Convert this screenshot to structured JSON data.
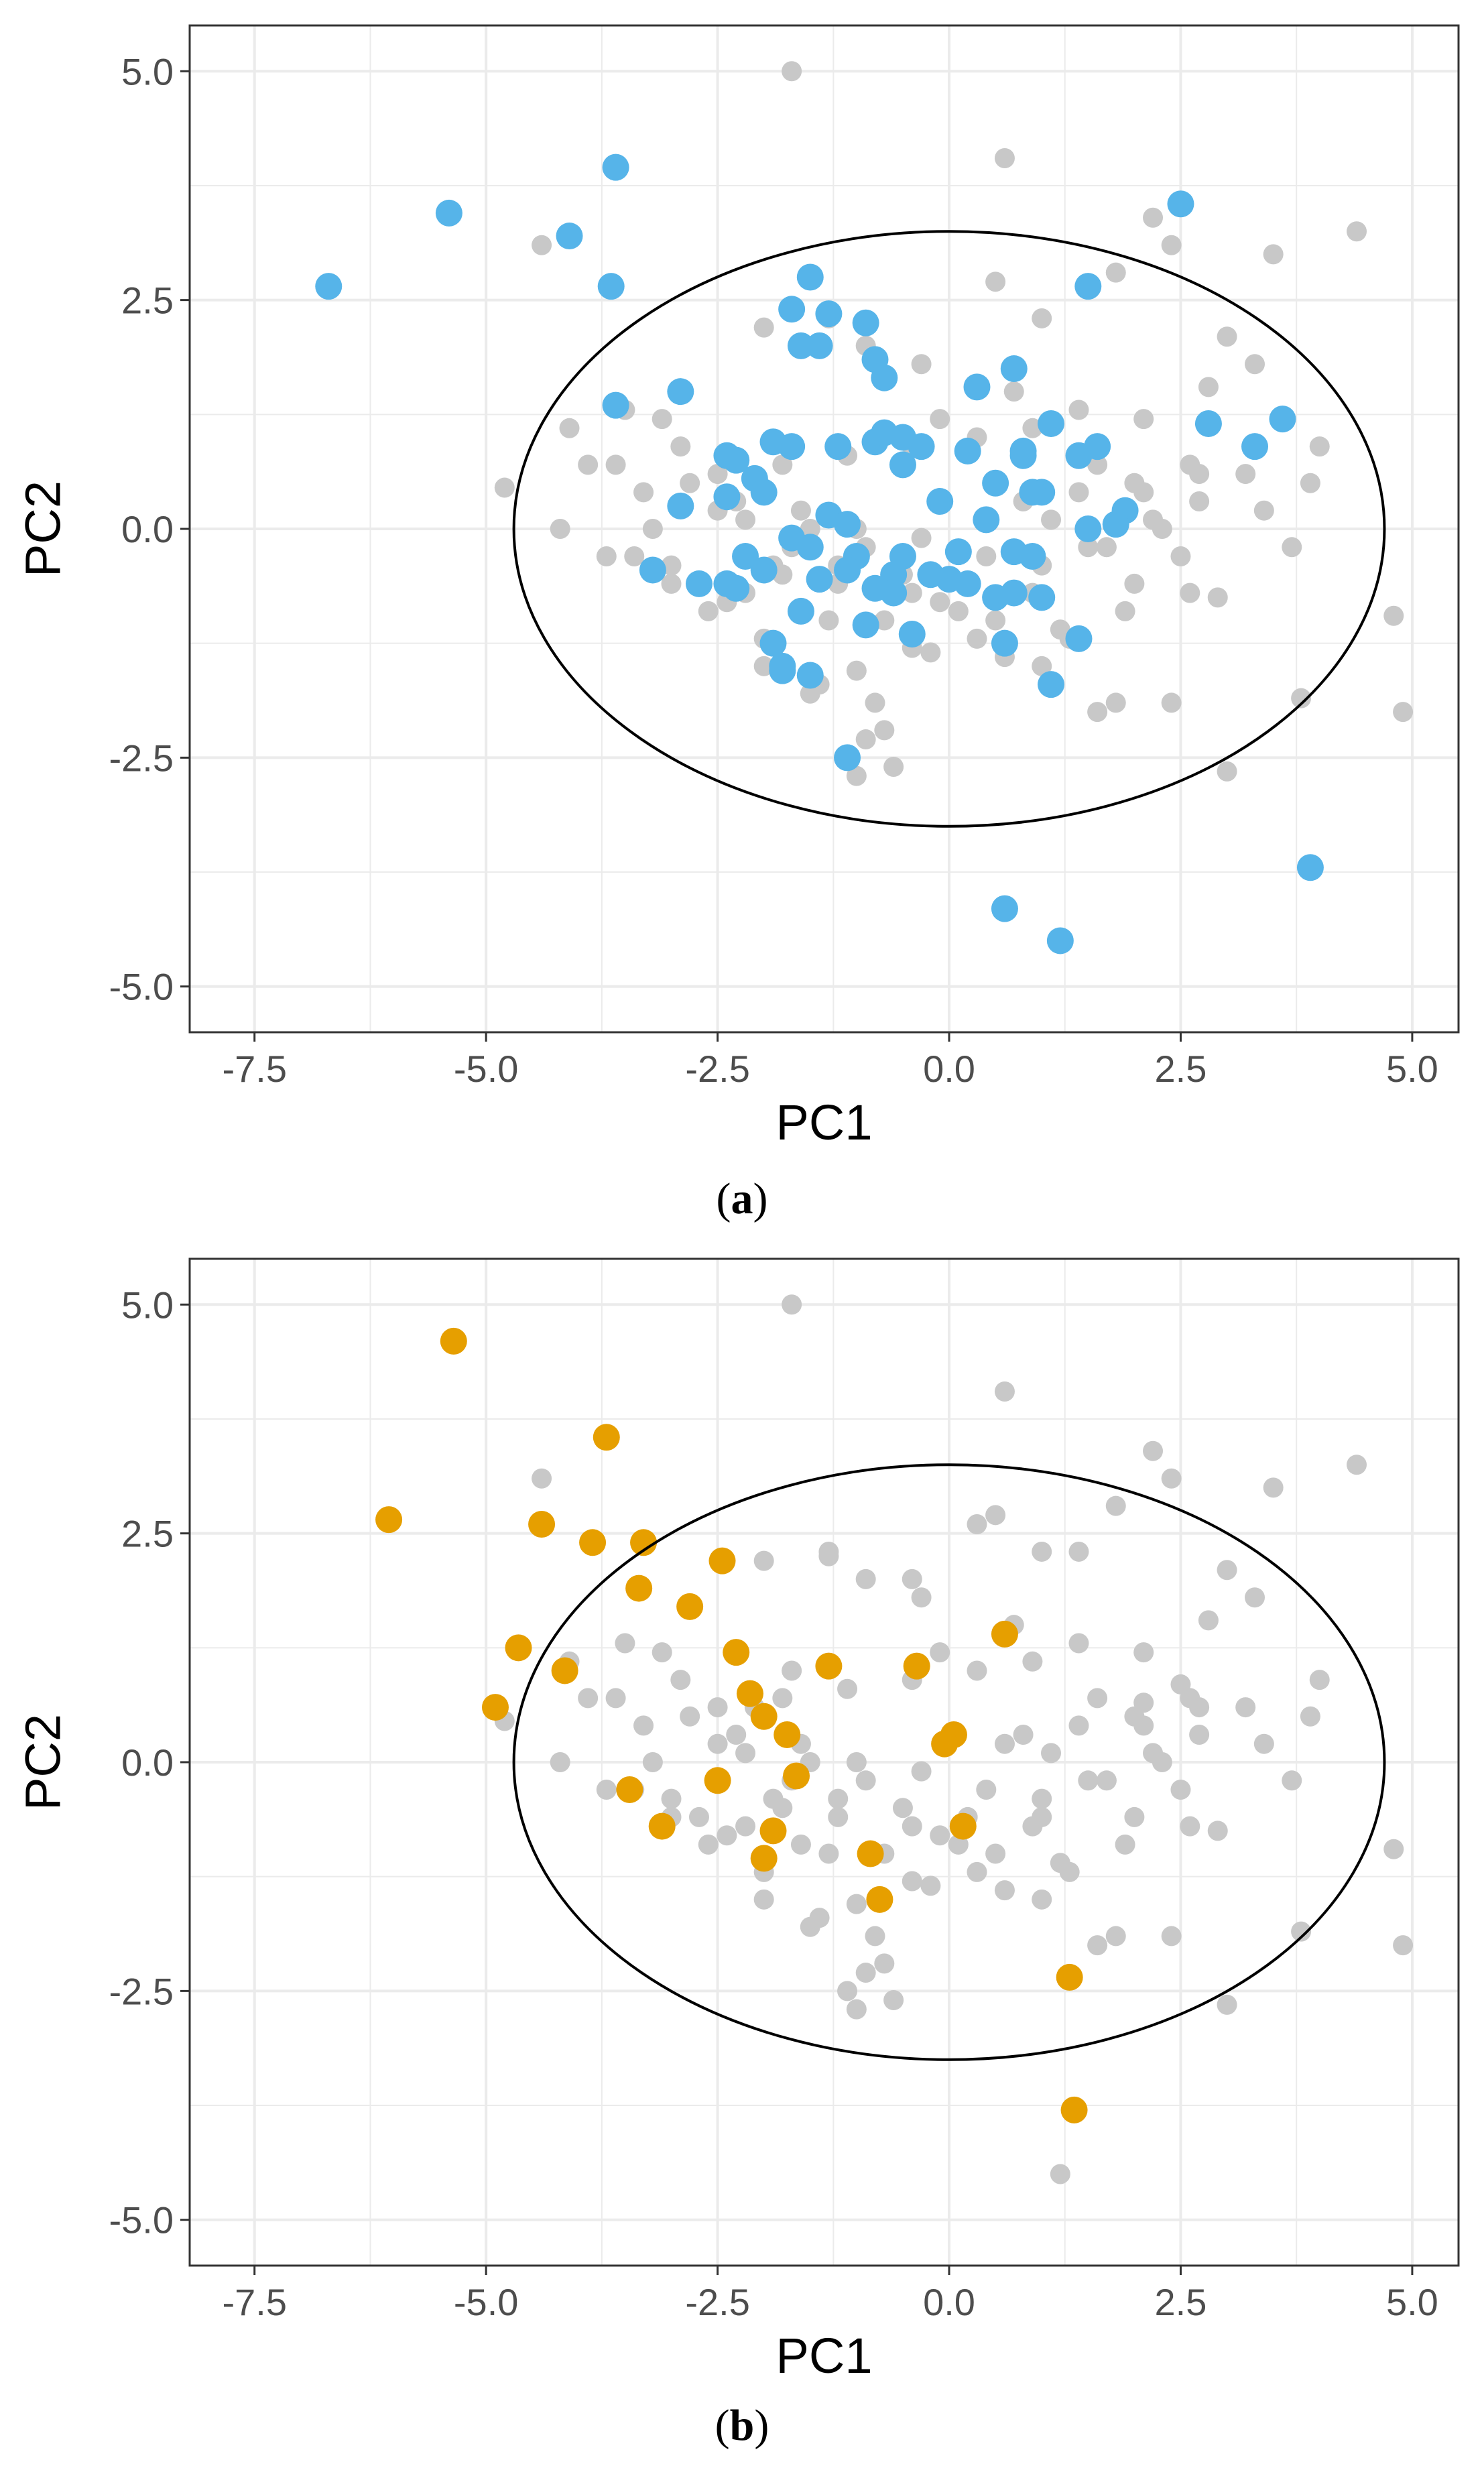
{
  "colors": {
    "background_point": "#c8c8c8",
    "highlight_a": "#56b4e9",
    "highlight_b": "#e69f00",
    "grid": "#ebebeb",
    "panel_border": "#333333",
    "ellipse": "#000000"
  },
  "chart_data": [
    {
      "type": "scatter",
      "caption": {
        "open": "(",
        "label": "a",
        "close": ")"
      },
      "xlabel": "PC1",
      "ylabel": "PC2",
      "xlim": [
        -8.2,
        5.5
      ],
      "ylim": [
        -5.5,
        5.5
      ],
      "x_ticks": [
        -7.5,
        -5.0,
        -2.5,
        0.0,
        2.5,
        5.0
      ],
      "x_tick_labels": [
        "-7.5",
        "-5.0",
        "-2.5",
        "0.0",
        "2.5",
        "5.0"
      ],
      "y_ticks": [
        -5.0,
        -2.5,
        0.0,
        2.5,
        5.0
      ],
      "y_tick_labels": [
        "-5.0",
        "-2.5",
        "0.0",
        "2.5",
        "5.0"
      ],
      "grid": true,
      "legend": "none",
      "ellipse": {
        "cx": 0.0,
        "cy": 0.0,
        "rx": 4.7,
        "ry": 3.25
      },
      "background": {
        "x": [
          -1.7,
          0.6,
          -4.4,
          -4.8,
          -3.1,
          -2.0,
          -1.3,
          -0.9,
          -0.3,
          0.5,
          1.0,
          1.8,
          2.2,
          2.4,
          3.0,
          3.5,
          4.4,
          3.3,
          2.8,
          2.1,
          1.4,
          0.9,
          0.3,
          -0.4,
          -1.1,
          -1.8,
          -2.5,
          -3.3,
          -3.9,
          -4.1,
          -3.5,
          -2.9,
          -2.3,
          -1.6,
          -1.0,
          -0.3,
          0.4,
          1.0,
          1.7,
          2.3,
          2.7,
          3.4,
          3.9,
          4.8,
          4.9,
          3.8,
          3.0,
          2.4,
          1.6,
          1.0,
          0.3,
          -0.4,
          -1.0,
          -1.5,
          -2.0,
          -2.6,
          -3.0,
          -3.7,
          -4.2,
          -3.6,
          -2.8,
          -2.2,
          -1.7,
          -1.2,
          -0.7,
          -0.1,
          0.5,
          1.2,
          1.9,
          2.5,
          2.9,
          3.7,
          4.0,
          3.2,
          2.6,
          2.0,
          1.4,
          0.8,
          0.2,
          -0.5,
          -1.2,
          -1.9,
          -2.4,
          -3.4,
          -2.0,
          -1.4,
          -0.8,
          -0.2,
          0.6,
          1.3,
          2.0,
          2.6,
          -0.9,
          -0.6,
          -1.3,
          -1.8,
          -2.2,
          -2.7,
          -0.1,
          0.7,
          1.6,
          2.2,
          -1.5,
          -0.9,
          -0.4,
          0.1,
          0.9,
          1.5,
          2.1,
          2.7,
          -1.1,
          -0.7,
          1.8,
          1.2,
          -3.0,
          -2.5,
          -3.2,
          1.1,
          -1.6,
          -1.0
        ],
        "y": [
          5.0,
          4.05,
          3.1,
          0.45,
          1.2,
          2.2,
          2.3,
          2.0,
          1.8,
          2.7,
          2.3,
          2.8,
          3.4,
          3.1,
          2.1,
          3.0,
          3.25,
          1.8,
          1.55,
          1.2,
          1.3,
          1.1,
          1.0,
          0.9,
          0.8,
          0.7,
          0.6,
          0.4,
          0.7,
          1.1,
          1.3,
          0.9,
          0.3,
          0.2,
          0.0,
          -0.1,
          -0.3,
          -0.4,
          -0.2,
          0.0,
          0.3,
          0.2,
          0.5,
          -0.95,
          -2.0,
          -1.85,
          -2.65,
          -1.9,
          -2.0,
          -1.5,
          -1.2,
          -1.3,
          -1.55,
          -1.8,
          -1.2,
          -0.9,
          -0.6,
          -0.3,
          0.0,
          0.7,
          0.5,
          0.1,
          -0.2,
          -0.6,
          -1.0,
          -0.8,
          -1.0,
          -1.1,
          -0.9,
          -0.3,
          -0.75,
          -0.2,
          0.9,
          0.6,
          0.7,
          0.5,
          0.4,
          0.3,
          -0.6,
          -0.5,
          -0.4,
          -0.4,
          -0.8,
          -0.3,
          -1.5,
          -1.7,
          -1.9,
          -1.35,
          -1.4,
          -1.2,
          -0.6,
          -0.7,
          -2.3,
          -2.6,
          -1.0,
          -0.5,
          -0.7,
          -0.6,
          1.2,
          1.5,
          0.7,
          0.1,
          0.0,
          -0.2,
          -0.7,
          -0.9,
          -0.7,
          -0.2,
          0.4,
          0.6,
          -2.5,
          -2.2,
          -1.9,
          -4.5,
          -0.4,
          0.2,
          0.0,
          0.1,
          -0.9,
          -2.7
        ]
      },
      "highlight": {
        "x": [
          -6.7,
          -5.4,
          -4.1,
          -3.6,
          -3.65,
          -3.6,
          -2.9,
          -1.7,
          -1.5,
          -1.3,
          -1.4,
          -1.6,
          -0.9,
          -1.9,
          -2.3,
          -2.4,
          -2.1,
          -2.0,
          -1.7,
          -1.2,
          -0.8,
          -0.5,
          0.3,
          0.7,
          1.1,
          1.5,
          1.6,
          2.5,
          2.8,
          3.3,
          3.6,
          -0.3,
          -0.1,
          0.8,
          1.0,
          1.4,
          0.9,
          0.4,
          -0.7,
          -1.3,
          -1.1,
          -0.8,
          -2.9,
          -3.2,
          -2.7,
          -2.3,
          -2.4,
          -2.0,
          -1.7,
          -1.5,
          -1.0,
          -0.5,
          -0.2,
          0.1,
          0.5,
          0.9,
          1.5,
          1.9,
          1.8,
          0.6,
          -0.8,
          -1.9,
          -1.4,
          -0.6,
          0.0,
          0.7,
          1.0,
          0.2,
          -0.5,
          -1.1,
          -1.6,
          -2.2,
          -1.8,
          -1.1,
          0.6,
          1.2,
          3.9,
          1.1,
          0.7,
          -2.4,
          -1.8,
          -0.9,
          -0.4,
          -1.5,
          -0.6,
          0.8,
          1.4,
          -0.7,
          0.2,
          0.5
        ],
        "y": [
          2.65,
          3.45,
          3.2,
          3.95,
          2.65,
          1.35,
          1.5,
          2.4,
          2.75,
          2.35,
          2.0,
          2.0,
          2.25,
          0.95,
          0.75,
          0.8,
          0.55,
          0.4,
          0.9,
          0.9,
          0.95,
          1.0,
          1.55,
          1.75,
          1.15,
          2.65,
          0.9,
          3.55,
          1.15,
          0.9,
          1.2,
          0.9,
          0.3,
          0.8,
          0.4,
          0.8,
          0.4,
          0.1,
          1.65,
          0.15,
          0.05,
          1.85,
          0.25,
          -0.45,
          -0.6,
          -0.65,
          0.35,
          -0.45,
          -0.1,
          -0.2,
          -0.3,
          -0.3,
          -0.5,
          -0.25,
          -0.75,
          -0.3,
          0.0,
          0.2,
          0.05,
          -1.25,
          -0.65,
          -1.25,
          -0.55,
          -0.5,
          -0.55,
          -0.7,
          -0.75,
          -0.6,
          0.7,
          -0.45,
          -0.9,
          -0.3,
          -1.5,
          -2.5,
          -4.15,
          -4.5,
          -3.7,
          -1.7,
          -0.25,
          -0.6,
          -1.55,
          -1.05,
          -1.15,
          -1.6,
          -0.7,
          0.85,
          -1.2,
          1.05,
          0.85,
          0.5
        ]
      }
    },
    {
      "type": "scatter",
      "caption": {
        "open": "(",
        "label": "b",
        "close": ")"
      },
      "xlabel": "PC1",
      "ylabel": "PC2",
      "xlim": [
        -8.2,
        5.5
      ],
      "ylim": [
        -5.5,
        5.5
      ],
      "x_ticks": [
        -7.5,
        -5.0,
        -2.5,
        0.0,
        2.5,
        5.0
      ],
      "x_tick_labels": [
        "-7.5",
        "-5.0",
        "-2.5",
        "0.0",
        "2.5",
        "5.0"
      ],
      "y_ticks": [
        -5.0,
        -2.5,
        0.0,
        2.5,
        5.0
      ],
      "y_tick_labels": [
        "-5.0",
        "-2.5",
        "0.0",
        "2.5",
        "5.0"
      ],
      "grid": true,
      "legend": "none",
      "ellipse": {
        "cx": 0.0,
        "cy": 0.0,
        "rx": 4.7,
        "ry": 3.25
      },
      "background": {
        "x": [
          -1.7,
          0.6,
          -4.4,
          -4.8,
          -3.1,
          -2.0,
          -1.3,
          -0.9,
          -0.3,
          0.5,
          1.0,
          1.8,
          2.2,
          2.4,
          3.0,
          3.5,
          4.4,
          3.3,
          2.8,
          2.1,
          1.4,
          0.9,
          0.3,
          -0.4,
          -1.1,
          -1.8,
          -2.5,
          -3.3,
          -3.9,
          -4.1,
          -3.5,
          -2.9,
          -2.3,
          -1.6,
          -1.0,
          -0.3,
          0.4,
          1.0,
          1.7,
          2.3,
          2.7,
          3.4,
          3.9,
          4.8,
          4.9,
          3.8,
          3.0,
          2.4,
          1.6,
          1.0,
          0.3,
          -0.4,
          -1.0,
          -1.5,
          -2.0,
          -2.6,
          -3.0,
          -3.7,
          -4.2,
          -3.6,
          -2.8,
          -2.2,
          -1.7,
          -1.2,
          -0.7,
          -0.1,
          0.5,
          1.2,
          1.9,
          2.5,
          2.9,
          3.7,
          4.0,
          3.2,
          2.6,
          2.0,
          1.4,
          0.8,
          0.2,
          -0.5,
          -1.2,
          -1.9,
          -2.4,
          -3.4,
          -2.0,
          -1.4,
          -0.8,
          -0.2,
          0.6,
          1.3,
          2.0,
          2.6,
          -0.9,
          -0.6,
          -1.3,
          -1.8,
          -2.2,
          -2.7,
          -0.1,
          0.7,
          1.6,
          2.2,
          -1.5,
          -0.9,
          -0.4,
          0.1,
          0.9,
          1.5,
          2.1,
          2.7,
          -1.1,
          -0.7,
          1.8,
          1.2,
          -3.0,
          -2.5,
          -3.2,
          1.1,
          -1.6,
          -1.0,
          -1.3,
          -0.4,
          0.3,
          1.4,
          -1.7,
          -2.1,
          0.6,
          1.0,
          2.1,
          2.5
        ],
        "y": [
          5.0,
          4.05,
          3.1,
          0.45,
          1.2,
          2.2,
          2.3,
          2.0,
          1.8,
          2.7,
          2.3,
          2.8,
          3.4,
          3.1,
          2.1,
          3.0,
          3.25,
          1.8,
          1.55,
          1.2,
          1.3,
          1.1,
          1.0,
          0.9,
          0.8,
          0.7,
          0.6,
          0.4,
          0.7,
          1.1,
          1.3,
          0.9,
          0.3,
          0.2,
          0.0,
          -0.1,
          -0.3,
          -0.4,
          -0.2,
          0.0,
          0.3,
          0.2,
          0.5,
          -0.95,
          -2.0,
          -1.85,
          -2.65,
          -1.9,
          -2.0,
          -1.5,
          -1.2,
          -1.3,
          -1.55,
          -1.8,
          -1.2,
          -0.9,
          -0.6,
          -0.3,
          0.0,
          0.7,
          0.5,
          0.1,
          -0.2,
          -0.6,
          -1.0,
          -0.8,
          -1.0,
          -1.1,
          -0.9,
          -0.3,
          -0.75,
          -0.2,
          0.9,
          0.6,
          0.7,
          0.5,
          0.4,
          0.3,
          -0.6,
          -0.5,
          -0.4,
          -0.4,
          -0.8,
          -0.3,
          -1.5,
          -1.7,
          -1.9,
          -1.35,
          -1.4,
          -1.2,
          -0.6,
          -0.7,
          -2.3,
          -2.6,
          -1.0,
          -0.5,
          -0.7,
          -0.6,
          1.2,
          1.5,
          0.7,
          0.1,
          0.0,
          -0.2,
          -0.7,
          -0.9,
          -0.7,
          -0.2,
          0.4,
          0.6,
          -2.5,
          -2.2,
          -1.9,
          -4.5,
          -0.4,
          0.2,
          0.0,
          0.1,
          -0.9,
          -2.7,
          2.25,
          2.0,
          2.6,
          2.3,
          1.0,
          0.6,
          0.2,
          -0.6,
          0.65,
          0.85
        ]
      },
      "highlight": {
        "x": [
          -6.05,
          -5.35,
          -3.7,
          -4.4,
          -3.85,
          -3.3,
          -3.35,
          -2.45,
          -2.8,
          -4.65,
          -4.15,
          -4.9,
          -2.3,
          -2.15,
          -2.0,
          -1.75,
          -1.3,
          -0.35,
          0.6,
          0.05,
          -0.05,
          -3.45,
          -3.1,
          -2.5,
          -1.9,
          -1.65,
          -2.0,
          -0.85,
          -0.75,
          0.15,
          1.3,
          1.35
        ],
        "y": [
          2.65,
          4.6,
          3.55,
          2.6,
          2.4,
          2.4,
          1.9,
          2.2,
          1.7,
          1.25,
          1.0,
          0.6,
          1.2,
          0.75,
          0.5,
          0.3,
          1.05,
          1.05,
          1.4,
          0.3,
          0.2,
          -0.3,
          -0.7,
          -0.2,
          -0.75,
          -0.15,
          -1.05,
          -1.0,
          -1.5,
          -0.7,
          -2.35,
          -3.8
        ]
      }
    }
  ]
}
